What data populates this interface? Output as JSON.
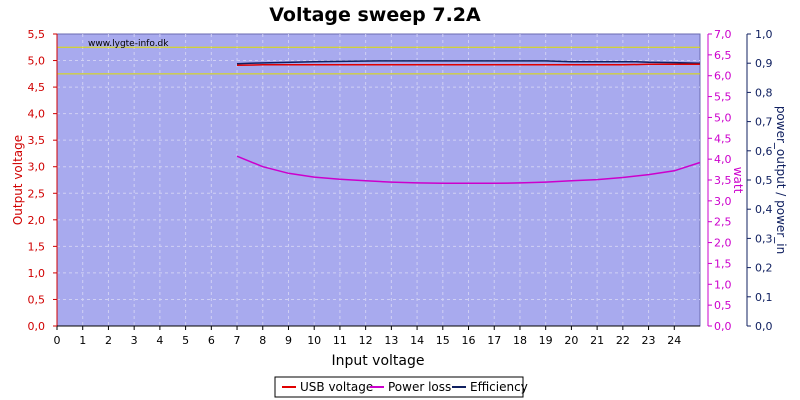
{
  "chart_data": {
    "type": "line",
    "title": "Voltage sweep 7.2A",
    "watermark": "www.lygte-info.dk",
    "xlabel": "Input voltage",
    "ylabel_left": "Output voltage",
    "ylabel_right1": "watt",
    "ylabel_right2": "power_output / power_in",
    "xlim": [
      0,
      25
    ],
    "ylim_left": [
      0,
      5.5
    ],
    "ylim_right1": [
      0,
      7
    ],
    "ylim_right2": [
      0,
      1
    ],
    "x_ticks": [
      "0",
      "1",
      "2",
      "3",
      "4",
      "5",
      "6",
      "7",
      "8",
      "9",
      "10",
      "11",
      "12",
      "13",
      "14",
      "15",
      "16",
      "17",
      "18",
      "19",
      "20",
      "21",
      "22",
      "23",
      "24"
    ],
    "y_left_ticks": [
      "0,0",
      "0,5",
      "1,0",
      "1,5",
      "2,0",
      "2,5",
      "3,0",
      "3,5",
      "4,0",
      "4,5",
      "5,0",
      "5,5"
    ],
    "y_right1_ticks": [
      "0,0",
      "0,5",
      "1,0",
      "1,5",
      "2,0",
      "2,5",
      "3,0",
      "3,5",
      "4,0",
      "4,5",
      "5,0",
      "5,5",
      "6,0",
      "6,5",
      "7,0"
    ],
    "y_right2_ticks": [
      "0,0",
      "0,1",
      "0,2",
      "0,3",
      "0,4",
      "0,5",
      "0,6",
      "0,7",
      "0,8",
      "0,9",
      "1,0"
    ],
    "reference_lines_left": [
      5.25,
      4.75
    ],
    "grid": true,
    "legend_position": "bottom-center",
    "colors": {
      "plot_bg": "#a8aaee",
      "grid": "#d0d0f4",
      "left_axis": "#d00000",
      "right1_axis": "#cc00cc",
      "right2_axis": "#102060",
      "reference": "#dddd00"
    },
    "series": [
      {
        "name": "USB voltage",
        "axis": "left",
        "color": "#e00000",
        "x": [
          7,
          8,
          9,
          10,
          11,
          12,
          13,
          14,
          15,
          16,
          17,
          18,
          19,
          20,
          21,
          22,
          23,
          24,
          25
        ],
        "y": [
          4.91,
          4.92,
          4.92,
          4.92,
          4.92,
          4.92,
          4.92,
          4.92,
          4.92,
          4.92,
          4.92,
          4.92,
          4.92,
          4.92,
          4.92,
          4.92,
          4.93,
          4.93,
          4.93
        ]
      },
      {
        "name": "Power loss",
        "axis": "right1",
        "color": "#cc00cc",
        "x": [
          7,
          8,
          9,
          10,
          11,
          12,
          13,
          14,
          15,
          16,
          17,
          18,
          19,
          20,
          21,
          22,
          23,
          24,
          25
        ],
        "y": [
          4.07,
          3.82,
          3.66,
          3.57,
          3.52,
          3.48,
          3.45,
          3.43,
          3.42,
          3.42,
          3.42,
          3.43,
          3.45,
          3.48,
          3.51,
          3.56,
          3.63,
          3.72,
          3.92
        ]
      },
      {
        "name": "Efficiency",
        "axis": "right2",
        "color": "#102060",
        "x": [
          7,
          7.5,
          8.5,
          10,
          12.5,
          15,
          17.5,
          19,
          20,
          22.5,
          23,
          24,
          25
        ],
        "y": [
          0.898,
          0.9,
          0.902,
          0.905,
          0.908,
          0.908,
          0.908,
          0.908,
          0.905,
          0.905,
          0.903,
          0.902,
          0.9
        ]
      }
    ]
  }
}
